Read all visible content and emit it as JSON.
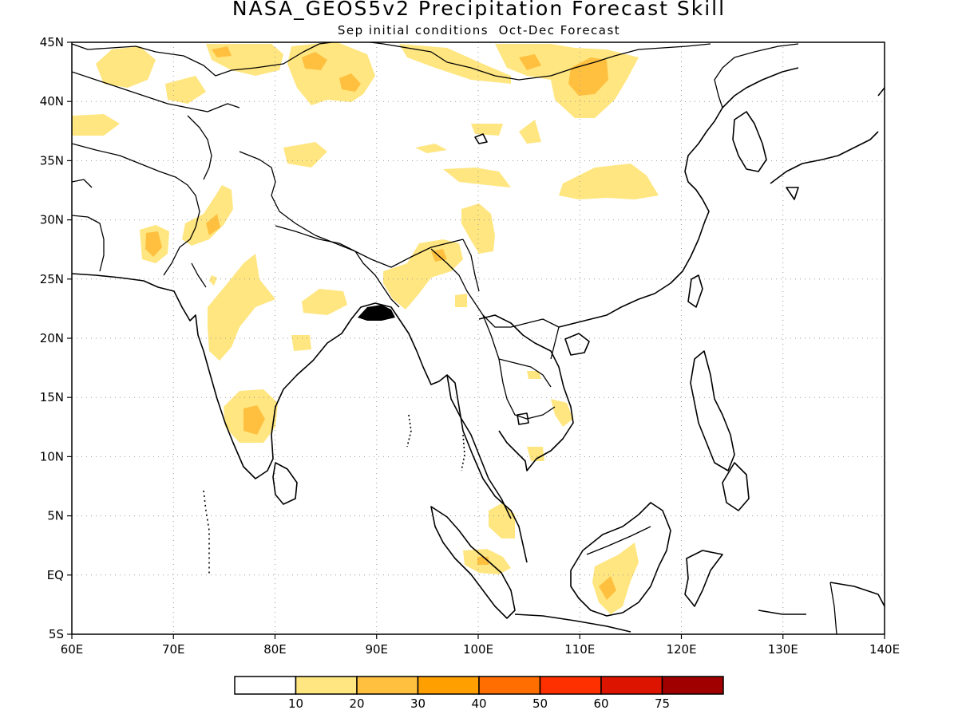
{
  "title": "NASA_GEOS5v2 Precipitation Forecast Skill",
  "subtitle": "Sep initial conditions  Oct-Dec Forecast",
  "map": {
    "lon_range": [
      60,
      140
    ],
    "lat_range": [
      -5,
      45
    ],
    "x_ticks": [
      "60E",
      "70E",
      "80E",
      "90E",
      "100E",
      "110E",
      "120E",
      "130E",
      "140E"
    ],
    "y_ticks": [
      "45N",
      "40N",
      "35N",
      "30N",
      "25N",
      "20N",
      "15N",
      "10N",
      "5N",
      "EQ",
      "5S"
    ],
    "grid": "dotted"
  },
  "colorbar": {
    "colors": [
      "#ffffff",
      "#ffe680",
      "#ffc040",
      "#ffa000",
      "#ff6e00",
      "#ff3000",
      "#dc1400",
      "#a00000"
    ],
    "labels": [
      "10",
      "20",
      "30",
      "40",
      "50",
      "60",
      "75"
    ]
  }
}
